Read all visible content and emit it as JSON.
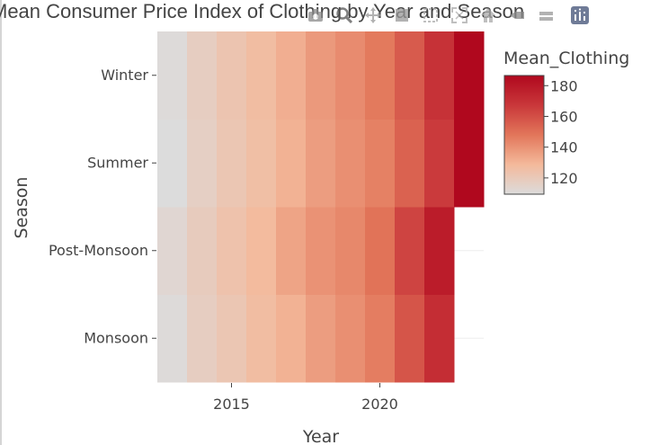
{
  "chart_data": {
    "type": "heatmap",
    "title": "Mean Consumer Price Index of Clothing by Year and Season",
    "xlabel": "Year",
    "ylabel": "Season",
    "x": [
      2013,
      2014,
      2015,
      2016,
      2017,
      2018,
      2019,
      2020,
      2021,
      2022,
      2023
    ],
    "x_tick_labels": [
      "2015",
      "2020"
    ],
    "x_ticks": [
      2015,
      2020
    ],
    "y_categories": [
      "Monsoon",
      "Post-Monsoon",
      "Summer",
      "Winter"
    ],
    "z": {
      "Winter": [
        111,
        118,
        123,
        127,
        132,
        138,
        142,
        147,
        156,
        169,
        186
      ],
      "Summer": [
        110,
        117,
        122,
        126,
        131,
        137,
        141,
        145,
        154,
        166,
        186
      ],
      "Post-Monsoon": [
        113,
        119,
        124,
        128,
        135,
        140,
        143,
        149,
        163,
        178,
        null
      ],
      "Monsoon": [
        111,
        118,
        122,
        127,
        131,
        137,
        141,
        146,
        158,
        171,
        null
      ]
    },
    "colorscale": [
      [
        0.0,
        "#dcdcdc"
      ],
      [
        0.25,
        "#f4b99b"
      ],
      [
        0.5,
        "#e2765a"
      ],
      [
        0.75,
        "#c9373a"
      ],
      [
        1.0,
        "#b0081e"
      ]
    ],
    "colorbar": {
      "title": "Mean_Clothing",
      "range": [
        110,
        186
      ],
      "tick_values": [
        120,
        140,
        160,
        180
      ],
      "tick_labels": [
        "120",
        "140",
        "160",
        "180"
      ]
    },
    "grid": true
  },
  "modebar": {
    "icons": [
      "camera-icon",
      "zoom-icon",
      "pan-icon",
      "box-select-icon",
      "lasso-icon",
      "autoscale-icon",
      "home-icon",
      "spike-icon",
      "compare-icon",
      "plotly-logo-icon"
    ]
  }
}
